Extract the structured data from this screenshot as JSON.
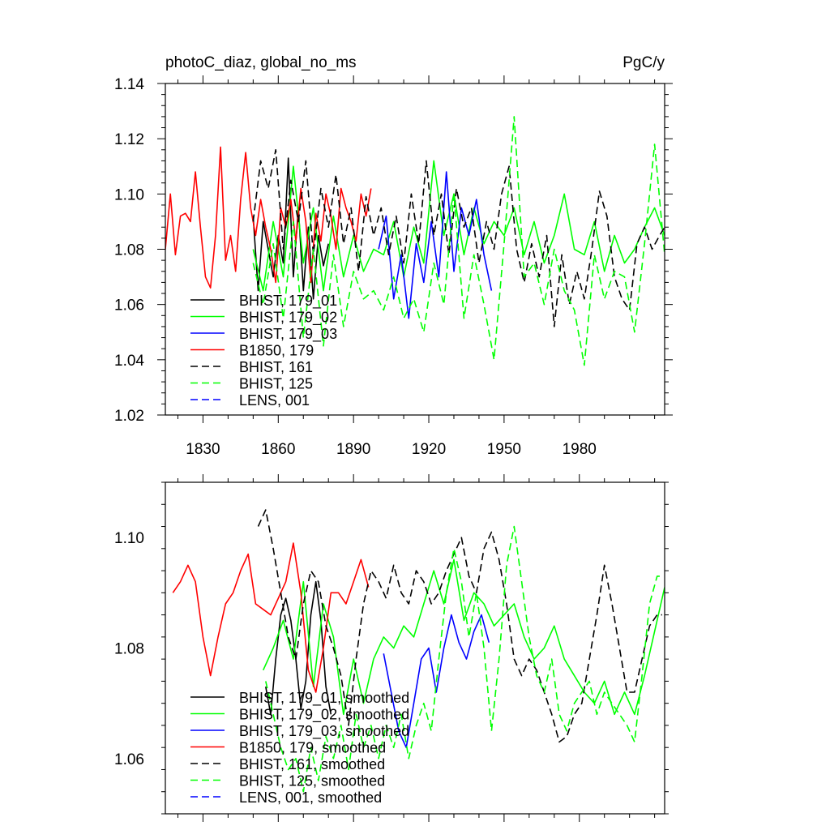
{
  "colors": {
    "black": "#000000",
    "green": "#00ff00",
    "blue": "#0000ff",
    "red": "#ff0000"
  },
  "chart_data": [
    {
      "type": "line",
      "title": "photoC_diaz, global_no_ms",
      "units": "PgC/y",
      "xlabel": "",
      "ylabel": "",
      "xlim": [
        1815,
        2014
      ],
      "ylim": [
        1.02,
        1.14
      ],
      "xticks": [
        1830,
        1860,
        1890,
        1920,
        1950,
        1980
      ],
      "xtick_labels": [
        "1830",
        "1860",
        "1890",
        "1920",
        "1950",
        "1980"
      ],
      "yticks": [
        1.02,
        1.04,
        1.06,
        1.08,
        1.1,
        1.12,
        1.14
      ],
      "ytick_labels": [
        "1.02",
        "1.04",
        "1.06",
        "1.08",
        "1.10",
        "1.12",
        "1.14"
      ],
      "legend": "bottom-left",
      "series": [
        {
          "name": "BHIST, 179_01",
          "color": "#000000",
          "dash": "solid",
          "x": [
            1850,
            1852,
            1854,
            1856,
            1858,
            1860,
            1862,
            1864,
            1866,
            1868,
            1870,
            1872,
            1874,
            1876,
            1878,
            1880
          ],
          "y": [
            1.092,
            1.065,
            1.09,
            1.08,
            1.07,
            1.085,
            1.075,
            1.113,
            1.07,
            1.095,
            1.065,
            1.088,
            1.062,
            1.085,
            1.074,
            1.082
          ]
        },
        {
          "name": "BHIST, 179_02",
          "color": "#00ff00",
          "dash": "solid",
          "x": [
            1850,
            1854,
            1858,
            1862,
            1866,
            1870,
            1874,
            1878,
            1882,
            1886,
            1890,
            1894,
            1898,
            1902,
            1906,
            1910,
            1914,
            1918,
            1922,
            1926,
            1930,
            1934,
            1938,
            1942,
            1946,
            1950,
            1954,
            1958,
            1962,
            1966,
            1970,
            1974,
            1978,
            1982,
            1986,
            1990,
            1994,
            1998,
            2002,
            2006,
            2010,
            2014
          ],
          "y": [
            1.08,
            1.065,
            1.09,
            1.07,
            1.11,
            1.075,
            1.095,
            1.065,
            1.092,
            1.07,
            1.085,
            1.072,
            1.08,
            1.078,
            1.09,
            1.07,
            1.088,
            1.075,
            1.112,
            1.085,
            1.1,
            1.078,
            1.095,
            1.082,
            1.09,
            1.085,
            1.095,
            1.078,
            1.09,
            1.075,
            1.085,
            1.1,
            1.08,
            1.078,
            1.09,
            1.072,
            1.085,
            1.075,
            1.08,
            1.088,
            1.095,
            1.085
          ]
        },
        {
          "name": "BHIST, 179_03",
          "color": "#0000ff",
          "dash": "solid",
          "x": [
            1900,
            1903,
            1906,
            1909,
            1912,
            1915,
            1918,
            1921,
            1924,
            1927,
            1930,
            1933,
            1936,
            1939,
            1942,
            1945
          ],
          "y": [
            1.08,
            1.092,
            1.062,
            1.078,
            1.055,
            1.082,
            1.068,
            1.09,
            1.07,
            1.108,
            1.072,
            1.095,
            1.085,
            1.098,
            1.078,
            1.065
          ]
        },
        {
          "name": "B1850, 179",
          "color": "#ff0000",
          "dash": "solid",
          "x": [
            1815,
            1817,
            1819,
            1821,
            1823,
            1825,
            1827,
            1829,
            1831,
            1833,
            1835,
            1837,
            1839,
            1841,
            1843,
            1845,
            1847,
            1849,
            1851,
            1853,
            1855,
            1857,
            1859,
            1861,
            1863,
            1865,
            1867,
            1869,
            1871,
            1873,
            1875,
            1877,
            1879,
            1881,
            1883,
            1885,
            1887,
            1889,
            1891,
            1893,
            1895,
            1897
          ],
          "y": [
            1.08,
            1.1,
            1.078,
            1.092,
            1.093,
            1.09,
            1.108,
            1.088,
            1.07,
            1.066,
            1.085,
            1.117,
            1.076,
            1.085,
            1.072,
            1.098,
            1.115,
            1.095,
            1.085,
            1.098,
            1.088,
            1.08,
            1.068,
            1.095,
            1.088,
            1.098,
            1.083,
            1.102,
            1.09,
            1.068,
            1.093,
            1.083,
            1.1,
            1.092,
            1.08,
            1.102,
            1.095,
            1.09,
            1.083,
            1.1,
            1.092,
            1.102
          ]
        },
        {
          "name": "BHIST, 161",
          "color": "#000000",
          "dash": "dashed",
          "x": [
            1850,
            1853,
            1856,
            1859,
            1862,
            1865,
            1868,
            1871,
            1874,
            1877,
            1880,
            1883,
            1886,
            1889,
            1892,
            1895,
            1898,
            1901,
            1904,
            1907,
            1910,
            1913,
            1916,
            1919,
            1922,
            1925,
            1928,
            1931,
            1934,
            1937,
            1940,
            1943,
            1946,
            1949,
            1952,
            1955,
            1958,
            1961,
            1964,
            1967,
            1970,
            1973,
            1976,
            1979,
            1982,
            1985,
            1988,
            1991,
            1994,
            1997,
            2000,
            2003,
            2006,
            2009,
            2012,
            2014
          ],
          "y": [
            1.09,
            1.112,
            1.102,
            1.116,
            1.08,
            1.105,
            1.09,
            1.112,
            1.078,
            1.102,
            1.088,
            1.107,
            1.082,
            1.095,
            1.072,
            1.099,
            1.085,
            1.095,
            1.078,
            1.092,
            1.075,
            1.1,
            1.082,
            1.112,
            1.085,
            1.1,
            1.078,
            1.102,
            1.088,
            1.095,
            1.075,
            1.09,
            1.08,
            1.1,
            1.11,
            1.08,
            1.068,
            1.082,
            1.07,
            1.085,
            1.052,
            1.078,
            1.06,
            1.072,
            1.062,
            1.08,
            1.101,
            1.092,
            1.07,
            1.062,
            1.058,
            1.082,
            1.088,
            1.08,
            1.085,
            1.088
          ]
        },
        {
          "name": "BHIST, 125",
          "color": "#00ff00",
          "dash": "dashed",
          "x": [
            1850,
            1854,
            1858,
            1862,
            1866,
            1870,
            1874,
            1878,
            1882,
            1886,
            1890,
            1894,
            1898,
            1902,
            1906,
            1910,
            1914,
            1918,
            1922,
            1926,
            1930,
            1934,
            1938,
            1942,
            1946,
            1950,
            1954,
            1958,
            1962,
            1966,
            1970,
            1974,
            1978,
            1982,
            1986,
            1990,
            1994,
            1998,
            2002,
            2006,
            2010,
            2014
          ],
          "y": [
            1.075,
            1.06,
            1.082,
            1.055,
            1.09,
            1.048,
            1.08,
            1.045,
            1.078,
            1.052,
            1.072,
            1.062,
            1.065,
            1.058,
            1.07,
            1.055,
            1.062,
            1.05,
            1.075,
            1.06,
            1.1,
            1.055,
            1.078,
            1.06,
            1.04,
            1.082,
            1.128,
            1.07,
            1.075,
            1.06,
            1.08,
            1.065,
            1.058,
            1.038,
            1.078,
            1.062,
            1.072,
            1.07,
            1.05,
            1.082,
            1.118,
            1.078
          ]
        },
        {
          "name": "LENS, 001",
          "color": "#0000ff",
          "dash": "dashed",
          "x": [],
          "y": []
        }
      ]
    },
    {
      "type": "line",
      "title": "",
      "xlabel": "",
      "ylabel": "",
      "xlim": [
        1815,
        2014
      ],
      "ylim": [
        1.05,
        1.11
      ],
      "xticks": [
        1830,
        1860,
        1890,
        1920,
        1950,
        1980
      ],
      "yticks": [
        1.06,
        1.08,
        1.1
      ],
      "ytick_labels": [
        "1.06",
        "1.08",
        "1.10"
      ],
      "legend": "bottom-left",
      "series": [
        {
          "name": "BHIST, 179_01, smoothed",
          "color": "#000000",
          "dash": "solid",
          "x": [
            1855,
            1857,
            1859,
            1861,
            1863,
            1865,
            1867,
            1869,
            1871,
            1873,
            1875,
            1877,
            1879,
            1881
          ],
          "y": [
            1.073,
            1.068,
            1.078,
            1.086,
            1.089,
            1.085,
            1.078,
            1.069,
            1.074,
            1.086,
            1.092,
            1.085,
            1.073,
            1.068
          ]
        },
        {
          "name": "BHIST, 179_02, smoothed",
          "color": "#00ff00",
          "dash": "solid",
          "x": [
            1854,
            1858,
            1862,
            1866,
            1870,
            1874,
            1878,
            1882,
            1886,
            1890,
            1894,
            1898,
            1902,
            1906,
            1910,
            1914,
            1918,
            1922,
            1926,
            1930,
            1934,
            1938,
            1942,
            1946,
            1950,
            1954,
            1958,
            1962,
            1966,
            1970,
            1974,
            1978,
            1982,
            1986,
            1990,
            1994,
            1998,
            2002,
            2006,
            2010,
            2014
          ],
          "y": [
            1.076,
            1.08,
            1.085,
            1.078,
            1.092,
            1.073,
            1.088,
            1.082,
            1.068,
            1.078,
            1.07,
            1.078,
            1.082,
            1.08,
            1.084,
            1.082,
            1.088,
            1.094,
            1.088,
            1.096,
            1.085,
            1.09,
            1.088,
            1.084,
            1.086,
            1.088,
            1.082,
            1.078,
            1.08,
            1.084,
            1.078,
            1.075,
            1.072,
            1.07,
            1.074,
            1.068,
            1.072,
            1.068,
            1.075,
            1.083,
            1.091
          ]
        },
        {
          "name": "BHIST, 179_03, smoothed",
          "color": "#0000ff",
          "dash": "solid",
          "x": [
            1902,
            1905,
            1908,
            1911,
            1914,
            1917,
            1920,
            1923,
            1926,
            1929,
            1932,
            1935,
            1938,
            1941,
            1944
          ],
          "y": [
            1.079,
            1.072,
            1.065,
            1.062,
            1.07,
            1.078,
            1.08,
            1.072,
            1.08,
            1.086,
            1.081,
            1.078,
            1.083,
            1.086,
            1.081
          ]
        },
        {
          "name": "B1850, 179, smoothed",
          "color": "#ff0000",
          "dash": "solid",
          "x": [
            1818,
            1821,
            1824,
            1827,
            1830,
            1833,
            1836,
            1839,
            1842,
            1845,
            1848,
            1851,
            1854,
            1857,
            1860,
            1863,
            1866,
            1869,
            1872,
            1875,
            1878,
            1881,
            1884,
            1887,
            1890,
            1893,
            1896
          ],
          "y": [
            1.09,
            1.092,
            1.095,
            1.092,
            1.082,
            1.075,
            1.082,
            1.088,
            1.09,
            1.094,
            1.097,
            1.088,
            1.087,
            1.086,
            1.089,
            1.092,
            1.099,
            1.09,
            1.076,
            1.072,
            1.08,
            1.09,
            1.09,
            1.088,
            1.092,
            1.096,
            1.091
          ]
        },
        {
          "name": "BHIST, 161, smoothed",
          "color": "#000000",
          "dash": "dashed",
          "x": [
            1852,
            1855,
            1858,
            1861,
            1864,
            1867,
            1870,
            1873,
            1876,
            1879,
            1882,
            1885,
            1888,
            1891,
            1894,
            1897,
            1900,
            1903,
            1906,
            1909,
            1912,
            1915,
            1918,
            1921,
            1924,
            1927,
            1930,
            1933,
            1936,
            1939,
            1942,
            1945,
            1948,
            1951,
            1954,
            1957,
            1960,
            1963,
            1966,
            1969,
            1972,
            1975,
            1978,
            1981,
            1984,
            1987,
            1990,
            1993,
            1996,
            1999,
            2002,
            2005,
            2008,
            2011,
            2013
          ],
          "y": [
            1.102,
            1.105,
            1.098,
            1.09,
            1.082,
            1.078,
            1.088,
            1.094,
            1.092,
            1.084,
            1.08,
            1.075,
            1.066,
            1.078,
            1.088,
            1.094,
            1.092,
            1.089,
            1.095,
            1.09,
            1.088,
            1.094,
            1.092,
            1.088,
            1.09,
            1.094,
            1.097,
            1.1,
            1.093,
            1.09,
            1.098,
            1.101,
            1.096,
            1.088,
            1.078,
            1.075,
            1.078,
            1.076,
            1.072,
            1.068,
            1.063,
            1.064,
            1.068,
            1.07,
            1.078,
            1.086,
            1.095,
            1.088,
            1.08,
            1.072,
            1.072,
            1.078,
            1.084,
            1.086,
            1.086
          ]
        },
        {
          "name": "BHIST, 125, smoothed",
          "color": "#00ff00",
          "dash": "dashed",
          "x": [
            1855,
            1858,
            1861,
            1864,
            1867,
            1870,
            1873,
            1876,
            1879,
            1882,
            1885,
            1888,
            1891,
            1894,
            1897,
            1900,
            1903,
            1906,
            1909,
            1912,
            1915,
            1918,
            1921,
            1924,
            1927,
            1930,
            1933,
            1936,
            1939,
            1942,
            1945,
            1948,
            1951,
            1954,
            1957,
            1960,
            1963,
            1966,
            1969,
            1972,
            1975,
            1978,
            1981,
            1984,
            1987,
            1990,
            1993,
            1996,
            1999,
            2002,
            2005,
            2008,
            2011,
            2013
          ],
          "y": [
            1.074,
            1.068,
            1.062,
            1.058,
            1.06,
            1.054,
            1.062,
            1.056,
            1.064,
            1.06,
            1.066,
            1.058,
            1.068,
            1.062,
            1.066,
            1.06,
            1.066,
            1.062,
            1.068,
            1.06,
            1.066,
            1.07,
            1.065,
            1.078,
            1.09,
            1.098,
            1.092,
            1.082,
            1.09,
            1.08,
            1.065,
            1.078,
            1.095,
            1.102,
            1.092,
            1.082,
            1.075,
            1.072,
            1.078,
            1.068,
            1.065,
            1.07,
            1.072,
            1.074,
            1.068,
            1.072,
            1.07,
            1.068,
            1.066,
            1.063,
            1.075,
            1.088,
            1.093,
            1.093
          ]
        },
        {
          "name": "LENS, 001, smoothed",
          "color": "#0000ff",
          "dash": "dashed",
          "x": [],
          "y": []
        }
      ]
    }
  ]
}
